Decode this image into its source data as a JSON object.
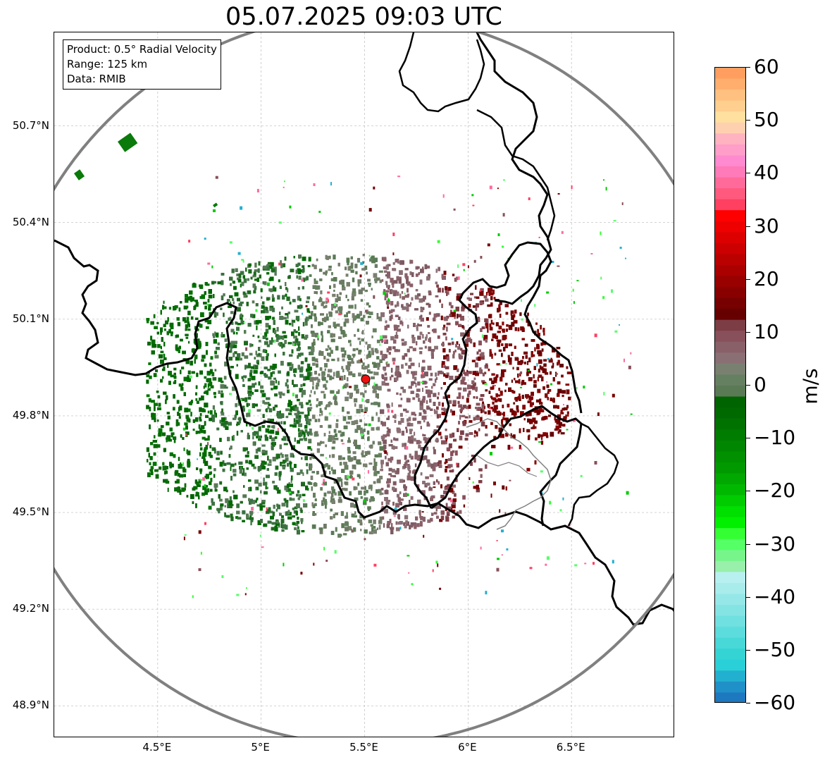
{
  "title": "05.07.2025 09:03 UTC",
  "info_box": {
    "product": "Product: 0.5° Radial Velocity",
    "range": "Range: 125 km",
    "data": "Data: RMIB"
  },
  "map": {
    "lon_range": [
      4.0,
      7.0
    ],
    "lat_range": [
      48.8,
      50.99
    ],
    "lon_ticks": [
      {
        "value": 4.5,
        "label": "4.5°E"
      },
      {
        "value": 5.0,
        "label": "5°E"
      },
      {
        "value": 5.5,
        "label": "5.5°E"
      },
      {
        "value": 6.0,
        "label": "6°E"
      },
      {
        "value": 6.5,
        "label": "6.5°E"
      }
    ],
    "lat_ticks": [
      {
        "value": 50.7,
        "label": "50.7°N"
      },
      {
        "value": 50.4,
        "label": "50.4°N"
      },
      {
        "value": 50.1,
        "label": "50.1°N"
      },
      {
        "value": 49.8,
        "label": "49.8°N"
      },
      {
        "value": 49.5,
        "label": "49.5°N"
      },
      {
        "value": 49.2,
        "label": "49.2°N"
      },
      {
        "value": 48.9,
        "label": "48.9°N"
      }
    ],
    "grid": true,
    "radar_site": {
      "lon": 5.505,
      "lat": 49.914
    },
    "range_ring_color": "#808080",
    "border_color": "#000000",
    "radar_dot_color": "#ee1111"
  },
  "colorbar": {
    "label": "m/s",
    "min": -60,
    "max": 60,
    "ticks": [
      {
        "value": 60,
        "label": "60"
      },
      {
        "value": 50,
        "label": "50"
      },
      {
        "value": 40,
        "label": "40"
      },
      {
        "value": 30,
        "label": "30"
      },
      {
        "value": 20,
        "label": "20"
      },
      {
        "value": 10,
        "label": "10"
      },
      {
        "value": 0,
        "label": "0"
      },
      {
        "value": -10,
        "label": "−10"
      },
      {
        "value": -20,
        "label": "−20"
      },
      {
        "value": -30,
        "label": "−30"
      },
      {
        "value": -40,
        "label": "−40"
      },
      {
        "value": -50,
        "label": "−50"
      },
      {
        "value": -60,
        "label": "−60"
      }
    ],
    "colors_top_to_bottom": [
      "#ff9e5e",
      "#ffae6e",
      "#ffc080",
      "#ffcf8f",
      "#ffe09e",
      "#ffd0b0",
      "#ffb3c0",
      "#ff9ec8",
      "#ff8ad0",
      "#ff7ab8",
      "#ff6a9a",
      "#ff5a7e",
      "#ff4060",
      "#ff0000",
      "#ee0000",
      "#dd0000",
      "#cc0000",
      "#bb0000",
      "#aa0000",
      "#990000",
      "#880000",
      "#770000",
      "#660000",
      "#7d3d45",
      "#88505a",
      "#8a6068",
      "#8a7075",
      "#7a8070",
      "#658060",
      "#5a7a55",
      "#006400",
      "#006a00",
      "#007200",
      "#007c00",
      "#008600",
      "#009000",
      "#009a00",
      "#00a800",
      "#00b800",
      "#00cc00",
      "#00e000",
      "#00f000",
      "#33ff33",
      "#55ff66",
      "#77f58a",
      "#99f0aa",
      "#b8f0f0",
      "#a8ecec",
      "#96e8e8",
      "#84e4e4",
      "#70e0e0",
      "#5cdcdc",
      "#48d8d8",
      "#34d4d4",
      "#2ad0d8",
      "#22b0d0",
      "#2090c8",
      "#1e78c0"
    ]
  }
}
